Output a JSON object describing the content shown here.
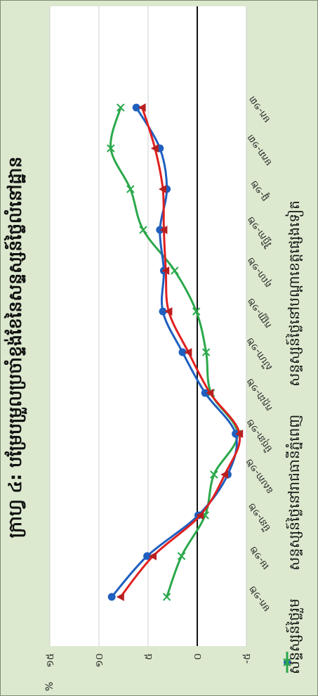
{
  "title": "ក្រាហ្វ ៤: បម្រែបម្រួលប្រចាំខ្ទង់ខែនៃសន្ទស្សន៍ថ្លៃលំនៅដ្ឋាន",
  "y_unit": "%",
  "colors": {
    "series1": "#e02020",
    "series2": "#1f5fbf",
    "series3": "#2aa84a",
    "background": "#dce9cf"
  },
  "chart_data": {
    "type": "line",
    "title": "ក្រាហ្វ ៤: បម្រែបម្រួលប្រចាំខ្ទង់ខែនៃសន្ទស្សន៍ថ្លៃលំនៅដ្ឋាន",
    "categories": [
      "មក-១២",
      "មេ-១២",
      "មីនា-១២",
      "ឧសភា-១២",
      "មិថុនា-១២",
      "កក្កដា-១២",
      "សីហា-១២",
      "កញ្ញា-១២",
      "តុលា-១២",
      "វិច្ឆិកា-១២",
      "ធ្នូ-១២",
      "មករា-១៣",
      "មក-១៣"
    ],
    "ylim": [
      -5,
      15
    ],
    "yticks": [
      "-៥",
      "០",
      "៥",
      "១០",
      "១៥"
    ],
    "ytick_values": [
      -5,
      0,
      5,
      10,
      15
    ],
    "y_unit": "%",
    "grid": true,
    "legend_position": "bottom",
    "series": [
      {
        "name": "សន្ទស្សន៍ថ្លៃរួម",
        "marker": "triangle",
        "values": [
          7.8,
          4.5,
          -0.3,
          -2.8,
          -4.3,
          -1.3,
          0.9,
          2.9,
          3.2,
          3.4,
          3.5,
          4.3,
          5.6
        ]
      },
      {
        "name": "សន្ទស្សន៍ថ្លៃនៅរាជធានីភ្នំពេញ",
        "marker": "circle",
        "values": [
          8.7,
          5.1,
          -0.1,
          -3.1,
          -3.9,
          -0.8,
          1.5,
          3.5,
          3.4,
          3.8,
          3.1,
          3.8,
          6.2
        ]
      },
      {
        "name": "សន្ទស្សន៍ថ្លៃនៅបណ្តាខេត្តផ្សេងទៀត",
        "marker": "x",
        "values": [
          3.1,
          1.6,
          -0.8,
          -1.7,
          -4.1,
          -1.4,
          -0.9,
          0.1,
          2.3,
          5.5,
          6.8,
          8.8,
          7.8
        ]
      }
    ]
  }
}
